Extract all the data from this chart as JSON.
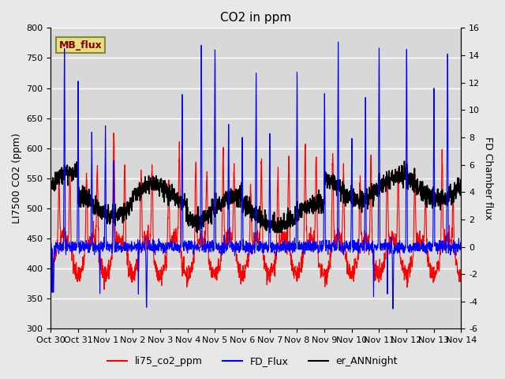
{
  "title": "CO2 in ppm",
  "ylabel_left": "LI7500 CO2 (ppm)",
  "ylabel_right": "FD Chamber flux",
  "xlabel": "",
  "ylim_left": [
    300,
    800
  ],
  "ylim_right": [
    -6,
    16
  ],
  "yticks_left": [
    300,
    350,
    400,
    450,
    500,
    550,
    600,
    650,
    700,
    750,
    800
  ],
  "yticks_right": [
    -6,
    -4,
    -2,
    0,
    2,
    4,
    6,
    8,
    10,
    12,
    14,
    16
  ],
  "xticklabels": [
    "Oct 30",
    "Oct 31",
    "Nov 1",
    "Nov 2",
    "Nov 3",
    "Nov 4",
    "Nov 5",
    "Nov 6",
    "Nov 7",
    "Nov 8",
    "Nov 9",
    "Nov 10",
    "Nov 11",
    "Nov 12",
    "Nov 13",
    "Nov 14"
  ],
  "bg_color": "#e8e8e8",
  "plot_bg_color": "#d8d8d8",
  "grid_color": "white",
  "box_color": "#e8e080",
  "box_text": "MB_flux",
  "box_text_color": "#800000",
  "legend_items": [
    "li75_co2_ppm",
    "FD_Flux",
    "er_ANNnight"
  ],
  "legend_colors": [
    "red",
    "blue",
    "black"
  ],
  "line_colors": [
    "red",
    "blue",
    "black"
  ],
  "n_points": 2016,
  "seed": 42
}
